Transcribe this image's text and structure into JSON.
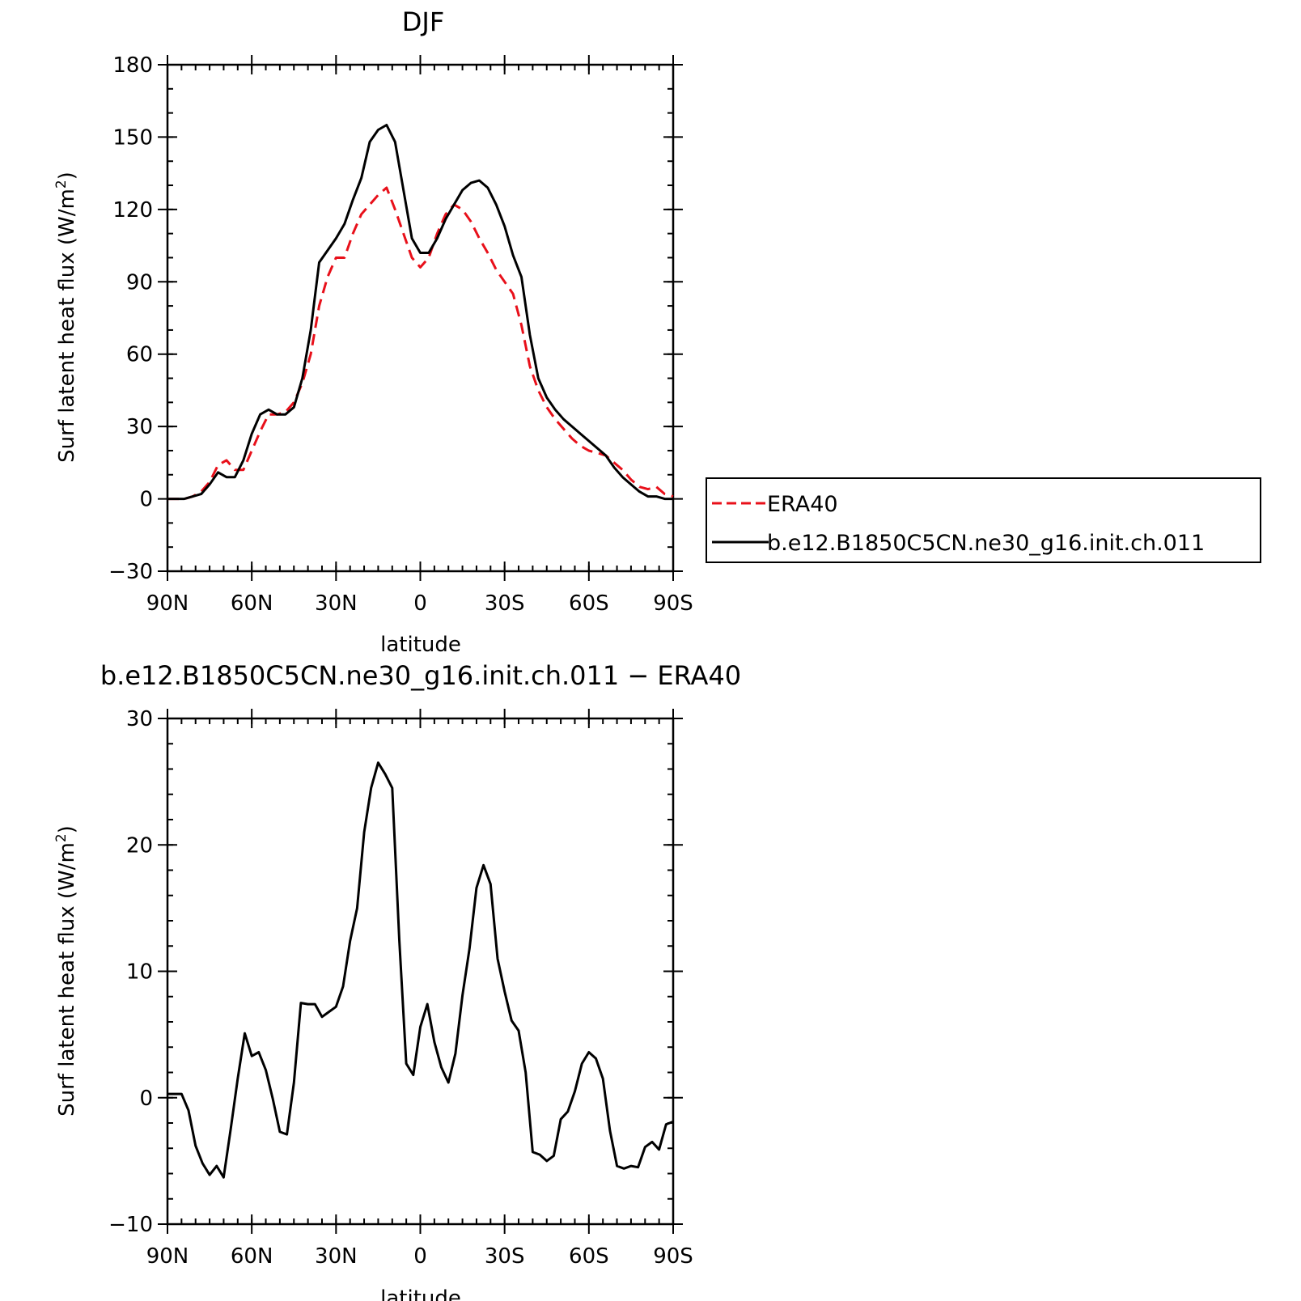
{
  "chart_data": [
    {
      "type": "line",
      "title": "DJF",
      "xlabel": "latitude",
      "ylabel": "Surf latent heat flux (W/m",
      "ylabel_sup": "2",
      "ylabel_tail": ")",
      "xlim": [
        -90,
        90
      ],
      "ylim": [
        -30,
        180
      ],
      "xticks": [
        -90,
        -60,
        -30,
        0,
        30,
        60,
        90
      ],
      "xtick_labels": [
        "90N",
        "60N",
        "30N",
        "0",
        "30S",
        "60S",
        "90S"
      ],
      "yticks": [
        -30,
        0,
        30,
        60,
        90,
        120,
        150,
        180
      ],
      "ytick_labels": [
        "−30",
        "0",
        "30",
        "60",
        "90",
        "120",
        "150",
        "180"
      ],
      "grid": false,
      "legend_position": "right",
      "x": [
        -90,
        -87,
        -84,
        -81,
        -78,
        -75,
        -72,
        -69,
        -66,
        -63,
        -60,
        -57,
        -54,
        -51,
        -48,
        -45,
        -42,
        -39,
        -36,
        -33,
        -30,
        -27,
        -24,
        -21,
        -18,
        -15,
        -12,
        -9,
        -6,
        -3,
        0,
        3,
        6,
        9,
        12,
        15,
        18,
        21,
        24,
        27,
        30,
        33,
        36,
        39,
        42,
        45,
        48,
        51,
        54,
        57,
        60,
        63,
        66,
        69,
        72,
        75,
        78,
        81,
        84,
        87,
        90
      ],
      "series": [
        {
          "name": "ERA40",
          "color": "#e8101a",
          "style": "dashed",
          "values": [
            0,
            0,
            0,
            1,
            3,
            7,
            14,
            16,
            12,
            12,
            20,
            28,
            35,
            35,
            36,
            40,
            48,
            60,
            80,
            92,
            100,
            100,
            110,
            118,
            122,
            126,
            129,
            120,
            110,
            100,
            96,
            100,
            110,
            118,
            122,
            120,
            115,
            108,
            102,
            95,
            90,
            85,
            72,
            55,
            45,
            38,
            33,
            29,
            25,
            22,
            20,
            19,
            18,
            15,
            12,
            8,
            5,
            4,
            5,
            2,
            1
          ],
          "values_note": ""
        },
        {
          "name": "b.e12.B1850C5CN.ne30_g16.init.ch.011",
          "color": "#000000",
          "style": "solid",
          "values": [
            0,
            0,
            0,
            1,
            2,
            6,
            11,
            9,
            9,
            16,
            27,
            35,
            37,
            35,
            35,
            38,
            50,
            70,
            98,
            103,
            108,
            114,
            124,
            133,
            148,
            153,
            155,
            148,
            128,
            108,
            102,
            102,
            108,
            116,
            122,
            128,
            131,
            132,
            129,
            122,
            113,
            101,
            92,
            68,
            50,
            42,
            37,
            33,
            30,
            27,
            24,
            21,
            18,
            13,
            9,
            6,
            3,
            1,
            1,
            0,
            0
          ]
        }
      ]
    },
    {
      "type": "line",
      "title": "b.e12.B1850C5CN.ne30_g16.init.ch.011 − ERA40",
      "xlabel": "latitude",
      "ylabel": "Surf latent heat flux (W/m",
      "ylabel_sup": "2",
      "ylabel_tail": ")",
      "xlim": [
        -90,
        90
      ],
      "ylim": [
        -10,
        30
      ],
      "xticks": [
        -90,
        -60,
        -30,
        0,
        30,
        60,
        90
      ],
      "xtick_labels": [
        "90N",
        "60N",
        "30N",
        "0",
        "30S",
        "60S",
        "90S"
      ],
      "yticks": [
        -10,
        0,
        10,
        20,
        30
      ],
      "ytick_labels": [
        "−10",
        "0",
        "10",
        "20",
        "30"
      ],
      "grid": false,
      "series": [
        {
          "color": "#000000",
          "style": "solid",
          "x": [
            -90,
            -87.5,
            -85,
            -82.5,
            -80,
            -77.5,
            -75,
            -72.5,
            -70,
            -67.5,
            -65,
            -62.5,
            -60,
            -57.5,
            -55,
            -52.5,
            -50,
            -47.5,
            -45,
            -42.5,
            -40,
            -37.5,
            -35,
            -32.5,
            -30,
            -27.5,
            -25,
            -22.5,
            -20,
            -17.5,
            -15,
            -12.5,
            -10,
            -7.5,
            -5,
            -2.5,
            0,
            2.5,
            5,
            7.5,
            10,
            12.5,
            15,
            17.5,
            20,
            22.5,
            25,
            27.5,
            30,
            32.5,
            35,
            37.5,
            40,
            42.5,
            45,
            47.5,
            50,
            52.5,
            55,
            57.5,
            60,
            62.5,
            65,
            67.5,
            70,
            72.5,
            75,
            77.5,
            80,
            82.5,
            85,
            87.5,
            90
          ],
          "values": [
            0.3,
            0.3,
            0.3,
            -1.0,
            -3.8,
            -5.2,
            -6.1,
            -5.4,
            -6.3,
            -2.5,
            1.5,
            5.1,
            3.3,
            3.6,
            2.2,
            -0.1,
            -2.7,
            -2.9,
            1.2,
            7.5,
            7.4,
            7.4,
            6.4,
            6.8,
            7.2,
            8.8,
            12.4,
            15.0,
            21.0,
            24.5,
            26.5,
            25.6,
            24.5,
            12.5,
            2.7,
            1.8,
            5.6,
            7.4,
            4.4,
            2.4,
            1.2,
            3.5,
            8.1,
            11.8,
            16.6,
            18.4,
            16.9,
            11.0,
            8.4,
            6.1,
            5.3,
            2.0,
            -4.3,
            -4.5,
            -5.0,
            -4.6,
            -1.7,
            -1.1,
            0.5,
            2.7,
            3.6,
            3.1,
            1.5,
            -2.6,
            -5.4,
            -5.6,
            -5.4,
            -5.5,
            -3.9,
            -3.5,
            -4.1,
            -2.1,
            -1.9
          ]
        }
      ]
    }
  ]
}
